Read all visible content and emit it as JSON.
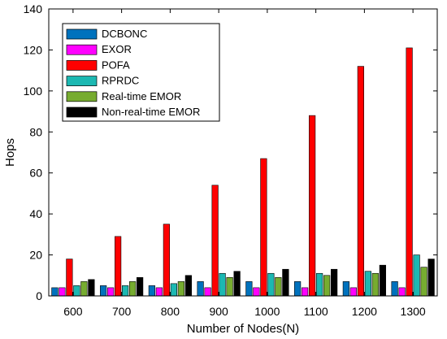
{
  "chart_data": {
    "type": "bar",
    "title": "",
    "xlabel": "Number of Nodes(N)",
    "ylabel": "Hops",
    "ylim": [
      0,
      140
    ],
    "yticks": [
      "0",
      "20",
      "40",
      "60",
      "80",
      "100",
      "120",
      "140"
    ],
    "categories": [
      "600",
      "700",
      "800",
      "900",
      "1000",
      "1100",
      "1200",
      "1300"
    ],
    "legend_position": "top-left",
    "series": [
      {
        "name": "DCBONC",
        "color": "#0072bd",
        "values": [
          4,
          5,
          5,
          7,
          7,
          7,
          7,
          7
        ]
      },
      {
        "name": "EXOR",
        "color": "#ff00ff",
        "values": [
          4,
          4,
          4,
          4,
          4,
          4,
          4,
          4
        ]
      },
      {
        "name": "POFA",
        "color": "#ff0000",
        "values": [
          18,
          29,
          35,
          54,
          67,
          88,
          112,
          121
        ]
      },
      {
        "name": "RPRDC",
        "color": "#1cb8b2",
        "values": [
          5,
          5,
          6,
          11,
          11,
          11,
          12,
          20
        ]
      },
      {
        "name": "Real-time EMOR",
        "color": "#77ac30",
        "values": [
          7,
          7,
          7,
          9,
          9,
          10,
          11,
          14
        ]
      },
      {
        "name": "Non-real-time EMOR",
        "color": "#000000",
        "values": [
          8,
          9,
          10,
          12,
          13,
          13,
          15,
          18
        ]
      }
    ]
  }
}
